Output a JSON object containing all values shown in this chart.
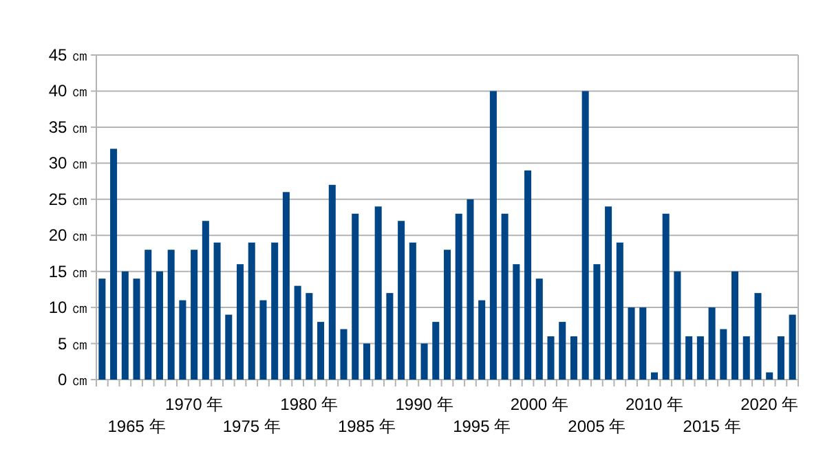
{
  "chart_data": {
    "type": "bar",
    "categories": [
      null,
      null,
      null,
      "1965 年",
      null,
      null,
      null,
      null,
      "1970 年",
      null,
      null,
      null,
      null,
      "1975 年",
      null,
      null,
      null,
      null,
      "1980 年",
      null,
      null,
      null,
      null,
      "1985 年",
      null,
      null,
      null,
      null,
      "1990 年",
      null,
      null,
      null,
      null,
      "1995 年",
      null,
      null,
      null,
      null,
      "2000 年",
      null,
      null,
      null,
      null,
      "2005 年",
      null,
      null,
      null,
      null,
      "2010 年",
      null,
      null,
      null,
      null,
      "2015 年",
      null,
      null,
      null,
      null,
      "2020 年",
      null,
      null
    ],
    "values": [
      14,
      32,
      15,
      14,
      18,
      15,
      18,
      11,
      18,
      22,
      19,
      9,
      16,
      19,
      11,
      19,
      26,
      13,
      12,
      8,
      27,
      7,
      23,
      5,
      24,
      12,
      22,
      19,
      5,
      8,
      18,
      23,
      25,
      11,
      40,
      23,
      16,
      29,
      14,
      6,
      8,
      6,
      40,
      16,
      24,
      19,
      10,
      10,
      1,
      23,
      15,
      6,
      6,
      10,
      7,
      15,
      6,
      12,
      1,
      6,
      9
    ],
    "color": "#004586",
    "ylim": [
      0,
      45
    ],
    "yticks": [
      {
        "value": 0,
        "label": "0 ㎝"
      },
      {
        "value": 5,
        "label": "5 ㎝"
      },
      {
        "value": 10,
        "label": "10 ㎝"
      },
      {
        "value": 15,
        "label": "15 ㎝"
      },
      {
        "value": 20,
        "label": "20 ㎝"
      },
      {
        "value": 25,
        "label": "25 ㎝"
      },
      {
        "value": 30,
        "label": "30 ㎝"
      },
      {
        "value": 35,
        "label": "35 ㎝"
      },
      {
        "value": 40,
        "label": "40 ㎝"
      },
      {
        "value": 45,
        "label": "45 ㎝"
      }
    ],
    "grid": "y"
  }
}
